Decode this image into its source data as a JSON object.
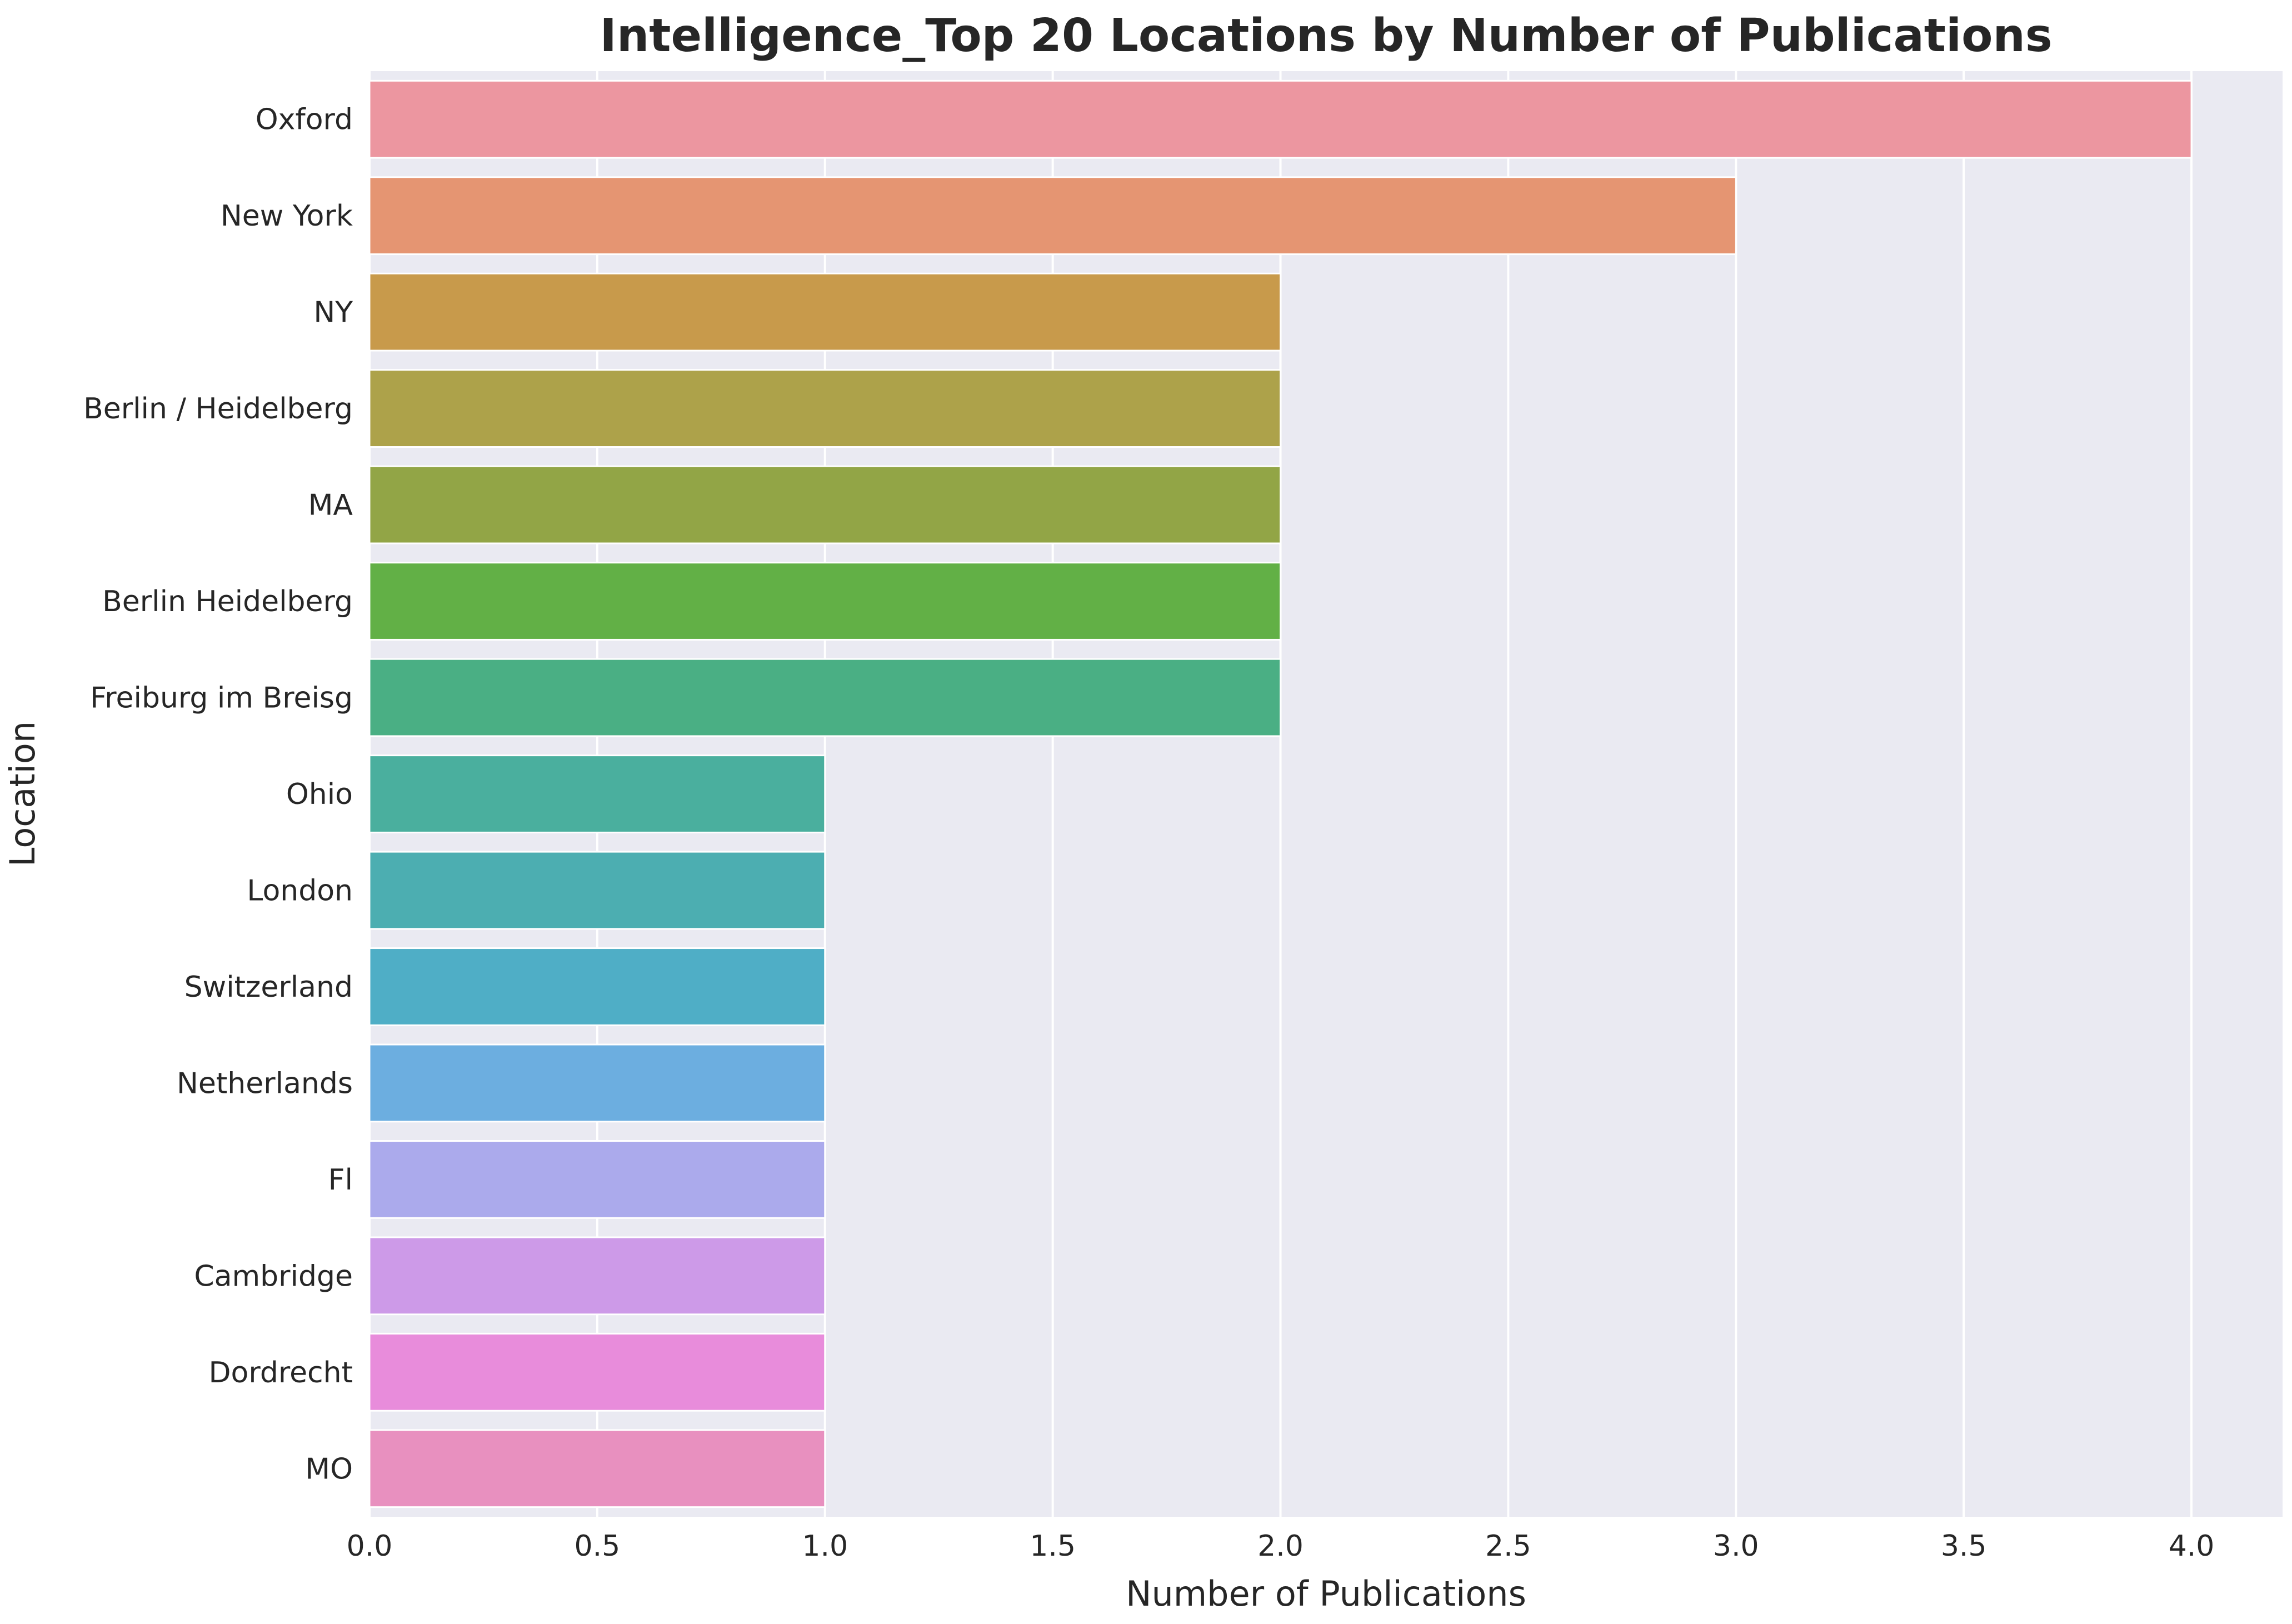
{
  "chart_data": {
    "type": "bar",
    "orientation": "horizontal",
    "title": "Intelligence_Top 20 Locations by Number of Publications",
    "xlabel": "Number of Publications",
    "ylabel": "Location",
    "xlim": [
      0,
      4.2
    ],
    "x_ticks": [
      "0.0",
      "0.5",
      "1.0",
      "1.5",
      "2.0",
      "2.5",
      "3.0",
      "3.5",
      "4.0"
    ],
    "x_tick_values": [
      0,
      0.5,
      1.0,
      1.5,
      2.0,
      2.5,
      3.0,
      3.5,
      4.0
    ],
    "grid": true,
    "background_color": "#eaeaf2",
    "categories": [
      "Oxford",
      "New York",
      "NY",
      "Berlin / Heidelberg",
      "MA",
      "Berlin Heidelberg",
      "Freiburg im Breisg",
      "Ohio",
      "London",
      "Switzerland",
      "Netherlands",
      "Fl",
      "Cambridge",
      "Dordrecht",
      "MO"
    ],
    "values": [
      4,
      3,
      2,
      2,
      2,
      2,
      2,
      1,
      1,
      1,
      1,
      1,
      1,
      1,
      1
    ],
    "colors": [
      "#ec96a0",
      "#e59572",
      "#c89a4b",
      "#ada24a",
      "#92a546",
      "#62b046",
      "#4aaf84",
      "#4aaf9e",
      "#4caeb1",
      "#4faec6",
      "#6caee0",
      "#abaaec",
      "#cd9ae8",
      "#e88cdb",
      "#e890bf"
    ]
  }
}
